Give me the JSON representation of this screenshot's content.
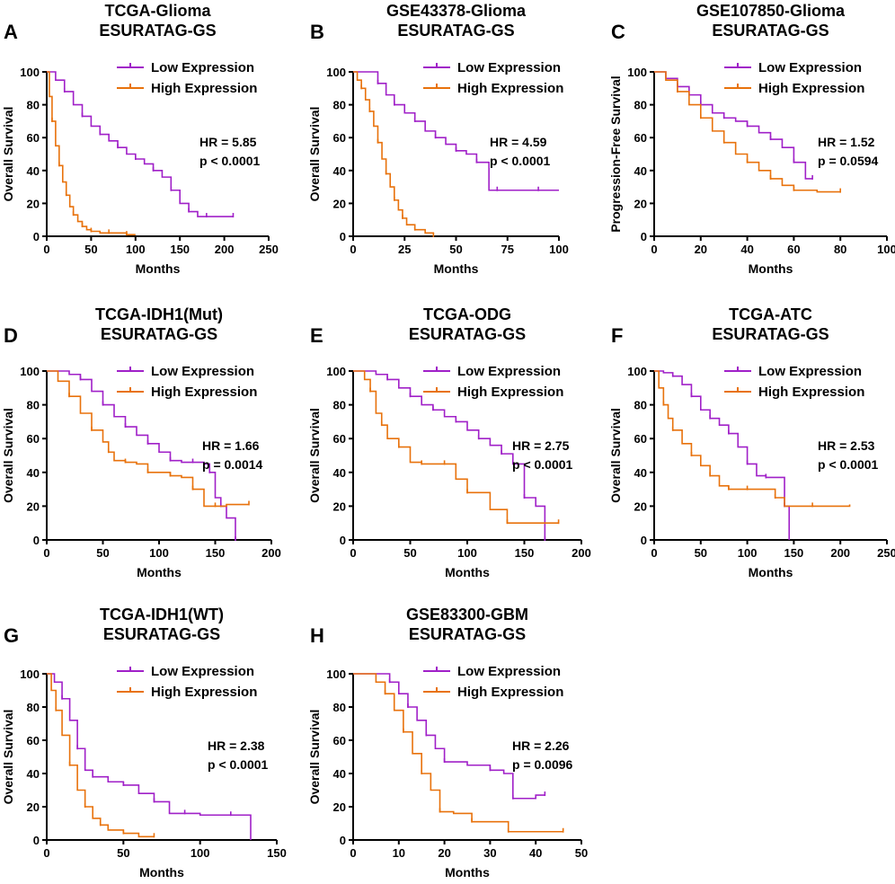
{
  "colors": {
    "low": "#a020c8",
    "high": "#e8720c",
    "axis": "#000000"
  },
  "legend": {
    "low": "Low Expression",
    "high": "High Expression"
  },
  "chart_data": [
    {
      "type": "line",
      "panel": "A",
      "title": [
        "TCGA-Glioma",
        "ESURATAG-GS"
      ],
      "xlabel": "Months",
      "ylabel": "Overall Survival",
      "xlim": [
        0,
        250
      ],
      "xticks": [
        0,
        50,
        100,
        150,
        200,
        250
      ],
      "ylim": [
        0,
        100
      ],
      "yticks": [
        0,
        20,
        40,
        60,
        80,
        100
      ],
      "stats": [
        "HR = 5.85",
        "p < 0.0001"
      ],
      "series": [
        {
          "name": "Low Expression",
          "x": [
            0,
            10,
            20,
            30,
            40,
            50,
            60,
            70,
            80,
            90,
            100,
            110,
            120,
            130,
            140,
            150,
            160,
            170,
            180,
            200,
            210
          ],
          "y": [
            100,
            95,
            88,
            80,
            73,
            67,
            62,
            58,
            54,
            50,
            47,
            44,
            40,
            36,
            28,
            20,
            15,
            12,
            12,
            12,
            12
          ]
        },
        {
          "name": "High Expression",
          "x": [
            0,
            3,
            6,
            10,
            14,
            18,
            22,
            26,
            30,
            35,
            40,
            45,
            50,
            60,
            70,
            80,
            90,
            100
          ],
          "y": [
            100,
            85,
            70,
            55,
            43,
            33,
            25,
            18,
            13,
            9,
            6,
            4,
            3,
            2,
            2,
            2,
            1,
            1
          ]
        }
      ]
    },
    {
      "type": "line",
      "panel": "B",
      "title": [
        "GSE43378-Glioma",
        "ESURATAG-GS"
      ],
      "xlabel": "Months",
      "ylabel": "Overall Survival",
      "xlim": [
        0,
        100
      ],
      "xticks": [
        0,
        25,
        50,
        75,
        100
      ],
      "ylim": [
        0,
        100
      ],
      "yticks": [
        0,
        20,
        40,
        60,
        80,
        100
      ],
      "stats": [
        "HR = 4.59",
        "p < 0.0001"
      ],
      "series": [
        {
          "name": "Low Expression",
          "x": [
            0,
            8,
            12,
            16,
            20,
            25,
            30,
            35,
            40,
            45,
            50,
            55,
            60,
            66,
            70,
            80,
            90,
            100
          ],
          "y": [
            100,
            100,
            93,
            86,
            80,
            75,
            70,
            64,
            60,
            56,
            52,
            50,
            45,
            28,
            28,
            28,
            28,
            28
          ]
        },
        {
          "name": "High Expression",
          "x": [
            0,
            2,
            4,
            6,
            8,
            10,
            12,
            14,
            16,
            18,
            20,
            22,
            24,
            26,
            30,
            35,
            39
          ],
          "y": [
            100,
            95,
            90,
            83,
            76,
            67,
            57,
            47,
            38,
            30,
            22,
            16,
            11,
            7,
            4,
            2,
            0
          ]
        }
      ]
    },
    {
      "type": "line",
      "panel": "C",
      "title": [
        "GSE107850-Glioma",
        "ESURATAG-GS"
      ],
      "xlabel": "Months",
      "ylabel": "Progression-Free Survival",
      "xlim": [
        0,
        100
      ],
      "xticks": [
        0,
        20,
        40,
        60,
        80,
        100
      ],
      "ylim": [
        0,
        100
      ],
      "yticks": [
        0,
        20,
        40,
        60,
        80,
        100
      ],
      "stats": [
        "HR = 1.52",
        "p = 0.0594"
      ],
      "series": [
        {
          "name": "Low Expression",
          "x": [
            0,
            5,
            10,
            15,
            20,
            25,
            30,
            35,
            40,
            45,
            50,
            55,
            60,
            65,
            68
          ],
          "y": [
            100,
            96,
            91,
            86,
            80,
            75,
            72,
            70,
            67,
            63,
            59,
            54,
            45,
            35,
            35
          ]
        },
        {
          "name": "High Expression",
          "x": [
            0,
            5,
            10,
            15,
            20,
            25,
            30,
            35,
            40,
            45,
            50,
            55,
            60,
            70,
            80
          ],
          "y": [
            100,
            95,
            88,
            80,
            72,
            64,
            57,
            50,
            45,
            40,
            35,
            31,
            28,
            27,
            27
          ]
        }
      ]
    },
    {
      "type": "line",
      "panel": "D",
      "title": [
        "TCGA-IDH1(Mut)",
        "ESURATAG-GS"
      ],
      "xlabel": "Months",
      "ylabel": "Overall Survival",
      "xlim": [
        0,
        200
      ],
      "xticks": [
        0,
        50,
        100,
        150,
        200
      ],
      "ylim": [
        0,
        100
      ],
      "yticks": [
        0,
        20,
        40,
        60,
        80,
        100
      ],
      "stats": [
        "HR = 1.66",
        "p = 0.0014"
      ],
      "series": [
        {
          "name": "Low Expression",
          "x": [
            0,
            20,
            30,
            40,
            50,
            60,
            70,
            80,
            90,
            100,
            110,
            120,
            130,
            140,
            145,
            150,
            155,
            160,
            168
          ],
          "y": [
            100,
            98,
            95,
            88,
            80,
            73,
            67,
            62,
            57,
            52,
            47,
            46,
            46,
            45,
            40,
            25,
            20,
            13,
            0
          ]
        },
        {
          "name": "High Expression",
          "x": [
            0,
            10,
            20,
            30,
            40,
            50,
            55,
            60,
            70,
            80,
            90,
            100,
            110,
            120,
            130,
            140,
            150,
            160,
            180
          ],
          "y": [
            100,
            94,
            85,
            75,
            65,
            58,
            52,
            47,
            46,
            45,
            40,
            40,
            38,
            37,
            30,
            20,
            20,
            21,
            21
          ]
        }
      ]
    },
    {
      "type": "line",
      "panel": "E",
      "title": [
        "TCGA-ODG",
        "ESURATAG-GS"
      ],
      "xlabel": "Months",
      "ylabel": "Overall Survival",
      "xlim": [
        0,
        200
      ],
      "xticks": [
        0,
        50,
        100,
        150,
        200
      ],
      "ylim": [
        0,
        100
      ],
      "yticks": [
        0,
        20,
        40,
        60,
        80,
        100
      ],
      "stats": [
        "HR = 2.75",
        "p < 0.0001"
      ],
      "series": [
        {
          "name": "Low Expression",
          "x": [
            0,
            20,
            30,
            40,
            50,
            60,
            70,
            80,
            90,
            100,
            110,
            120,
            130,
            140,
            150,
            160,
            168
          ],
          "y": [
            100,
            98,
            95,
            90,
            85,
            80,
            77,
            73,
            70,
            65,
            60,
            56,
            51,
            45,
            25,
            20,
            0
          ]
        },
        {
          "name": "High Expression",
          "x": [
            0,
            10,
            15,
            20,
            25,
            30,
            40,
            50,
            60,
            70,
            80,
            90,
            100,
            120,
            135,
            150,
            180
          ],
          "y": [
            100,
            95,
            88,
            75,
            68,
            60,
            55,
            46,
            45,
            45,
            45,
            36,
            28,
            18,
            10,
            10,
            10
          ]
        }
      ]
    },
    {
      "type": "line",
      "panel": "F",
      "title": [
        "TCGA-ATC",
        "ESURATAG-GS"
      ],
      "xlabel": "Months",
      "ylabel": "Overall Survival",
      "xlim": [
        0,
        250
      ],
      "xticks": [
        0,
        50,
        100,
        150,
        200,
        250
      ],
      "ylim": [
        0,
        100
      ],
      "yticks": [
        0,
        20,
        40,
        60,
        80,
        100
      ],
      "stats": [
        "HR = 2.53",
        "p < 0.0001"
      ],
      "series": [
        {
          "name": "Low Expression",
          "x": [
            0,
            10,
            20,
            30,
            40,
            50,
            60,
            70,
            80,
            90,
            100,
            110,
            120,
            130,
            140,
            145
          ],
          "y": [
            100,
            99,
            97,
            92,
            85,
            77,
            72,
            68,
            63,
            55,
            45,
            38,
            37,
            37,
            20,
            0
          ]
        },
        {
          "name": "High Expression",
          "x": [
            0,
            5,
            10,
            15,
            20,
            30,
            40,
            50,
            60,
            70,
            80,
            90,
            100,
            120,
            130,
            140,
            170,
            210
          ],
          "y": [
            100,
            90,
            80,
            72,
            65,
            57,
            50,
            44,
            38,
            32,
            30,
            30,
            30,
            30,
            25,
            20,
            20,
            21
          ]
        }
      ]
    },
    {
      "type": "line",
      "panel": "G",
      "title": [
        "TCGA-IDH1(WT)",
        "ESURATAG-GS"
      ],
      "xlabel": "Months",
      "ylabel": "Overall Survival",
      "xlim": [
        0,
        150
      ],
      "xticks": [
        0,
        50,
        100,
        150
      ],
      "ylim": [
        0,
        100
      ],
      "yticks": [
        0,
        20,
        40,
        60,
        80,
        100
      ],
      "stats": [
        "HR = 2.38",
        "p < 0.0001"
      ],
      "series": [
        {
          "name": "Low Expression",
          "x": [
            0,
            5,
            10,
            15,
            20,
            25,
            30,
            40,
            50,
            60,
            70,
            80,
            90,
            100,
            120,
            133
          ],
          "y": [
            100,
            95,
            85,
            72,
            55,
            42,
            38,
            35,
            33,
            28,
            23,
            16,
            16,
            15,
            15,
            0
          ]
        },
        {
          "name": "High Expression",
          "x": [
            0,
            3,
            6,
            10,
            15,
            20,
            25,
            30,
            35,
            40,
            50,
            60,
            70
          ],
          "y": [
            100,
            90,
            78,
            63,
            45,
            30,
            20,
            13,
            9,
            6,
            4,
            2,
            2
          ]
        }
      ]
    },
    {
      "type": "line",
      "panel": "H",
      "title": [
        "GSE83300-GBM",
        "ESURATAG-GS"
      ],
      "xlabel": "Months",
      "ylabel": "Overall Survival",
      "xlim": [
        0,
        50
      ],
      "xticks": [
        0,
        10,
        20,
        30,
        40,
        50
      ],
      "ylim": [
        0,
        100
      ],
      "yticks": [
        0,
        20,
        40,
        60,
        80,
        100
      ],
      "stats": [
        "HR = 2.26",
        "p = 0.0096"
      ],
      "series": [
        {
          "name": "Low Expression",
          "x": [
            0,
            6,
            8,
            10,
            12,
            14,
            16,
            18,
            20,
            25,
            30,
            33,
            35,
            40,
            42
          ],
          "y": [
            100,
            100,
            95,
            88,
            80,
            72,
            63,
            55,
            47,
            45,
            42,
            40,
            25,
            27,
            27
          ]
        },
        {
          "name": "High Expression",
          "x": [
            0,
            5,
            7,
            9,
            11,
            13,
            15,
            17,
            19,
            22,
            26,
            30,
            34,
            40,
            46
          ],
          "y": [
            100,
            95,
            88,
            78,
            65,
            52,
            40,
            30,
            17,
            16,
            11,
            11,
            5,
            5,
            5
          ]
        }
      ]
    }
  ]
}
